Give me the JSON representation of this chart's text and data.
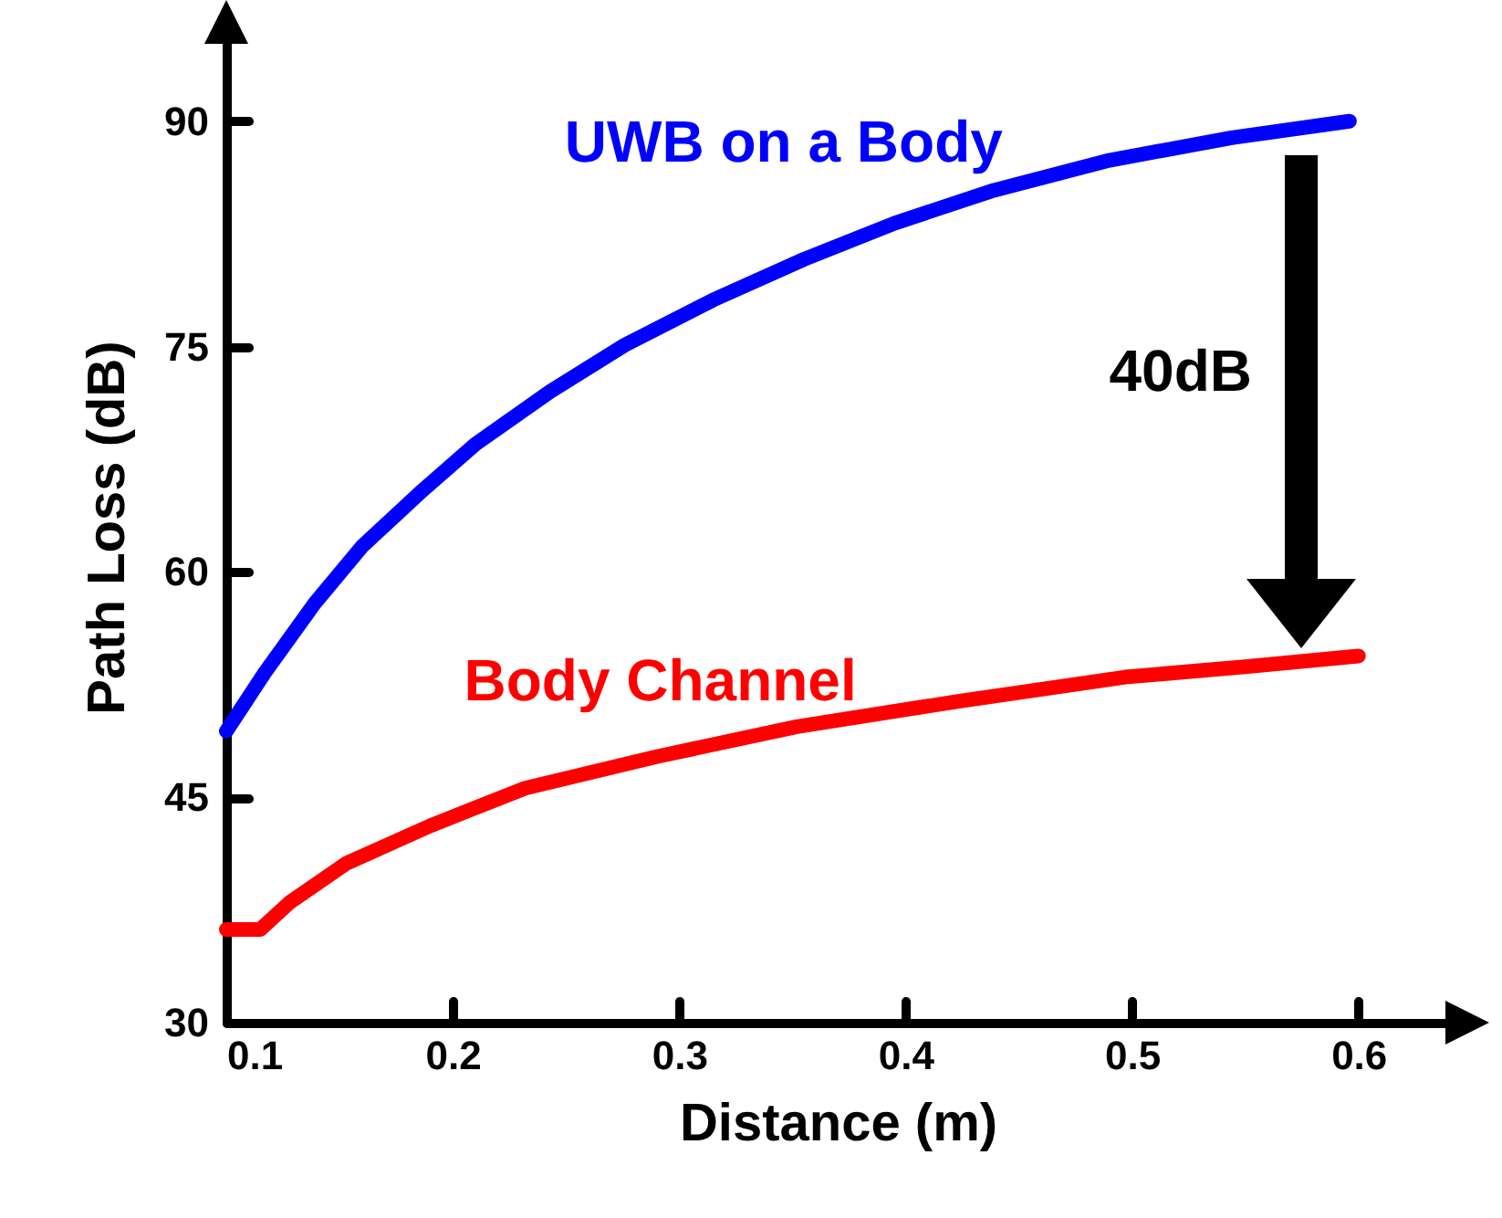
{
  "chart_data": {
    "type": "line",
    "xlabel": "Distance (m)",
    "ylabel": "Path Loss (dB)",
    "xlim": [
      0.1,
      0.64
    ],
    "ylim": [
      30,
      96
    ],
    "xticks": [
      {
        "value": 0.1,
        "label": "0.1"
      },
      {
        "value": 0.2,
        "label": "0.2"
      },
      {
        "value": 0.3,
        "label": "0.3"
      },
      {
        "value": 0.4,
        "label": "0.4"
      },
      {
        "value": 0.5,
        "label": "0.5"
      },
      {
        "value": 0.6,
        "label": "0.6"
      }
    ],
    "yticks": [
      30,
      45,
      60,
      75,
      90
    ],
    "grid": false,
    "marker": "none",
    "line_style": "solid",
    "series": [
      {
        "name": "UWB on a Body",
        "color": "#0000ff",
        "x": [
          0.1,
          0.117,
          0.139,
          0.16,
          0.185,
          0.21,
          0.243,
          0.276,
          0.315,
          0.355,
          0.395,
          0.439,
          0.49,
          0.544,
          0.596
        ],
        "values": [
          49.4,
          53.3,
          57.9,
          61.7,
          65.2,
          68.5,
          72.0,
          75.1,
          78.1,
          80.8,
          83.2,
          85.4,
          87.4,
          88.9,
          90.0
        ]
      },
      {
        "name": "Body Channel",
        "color": "#ff0000",
        "x": [
          0.1,
          0.115,
          0.128,
          0.153,
          0.19,
          0.232,
          0.29,
          0.352,
          0.424,
          0.497,
          0.551,
          0.6
        ],
        "values": [
          36.2,
          36.2,
          38.0,
          40.6,
          43.1,
          45.6,
          47.7,
          49.7,
          51.4,
          53.0,
          53.7,
          54.4
        ]
      }
    ],
    "annotations": [
      "40dB"
    ]
  }
}
